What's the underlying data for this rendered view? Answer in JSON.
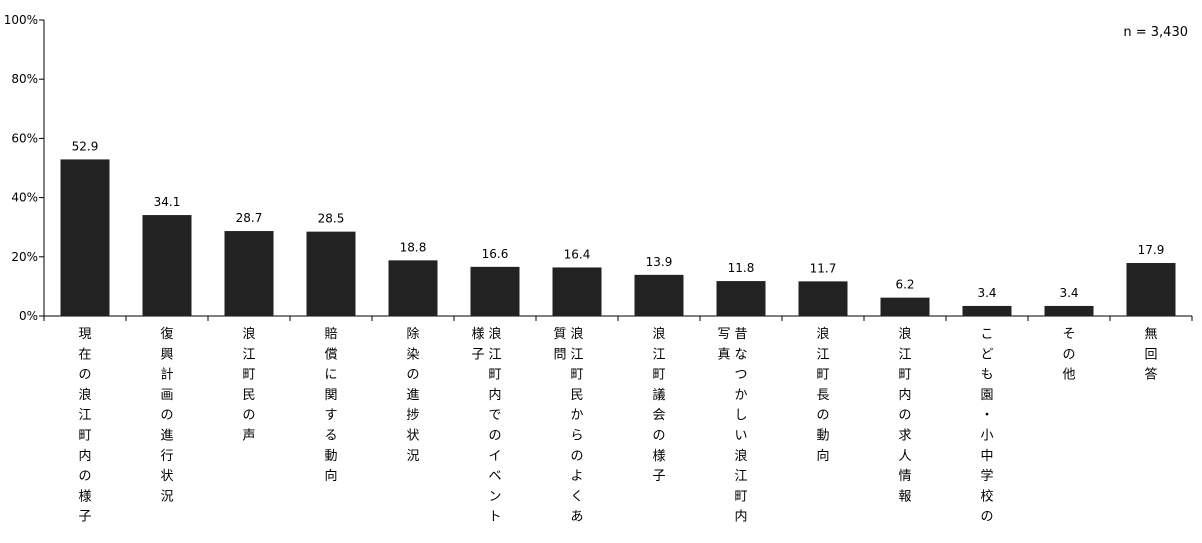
{
  "sample_size": "n = 3,430",
  "colors": {
    "bar": "#222222",
    "axis": "#000000"
  },
  "chart_data": {
    "type": "bar",
    "categories": [
      "現在の浪江町内の様子",
      "復興計画の進行状況",
      "浪江町民の声",
      "賠償に関する動向",
      "除染の進捗状況",
      "浪江町内でのイベントの様子",
      "浪江町民からのよくある質問",
      "浪江町議会の様子",
      "昔なつかしい浪江町内の写真",
      "浪江町長の動向",
      "浪江町内の求人情報",
      "こども園・小中学校の情",
      "その他",
      "無回答"
    ],
    "category_lines": [
      [
        "現在の浪江町内の様子"
      ],
      [
        "復興計画の進行状況"
      ],
      [
        "浪江町民の声"
      ],
      [
        "賠償に関する動向"
      ],
      [
        "除染の進捗状況"
      ],
      [
        "浪江町内でのイベントの",
        "様子"
      ],
      [
        "浪江町民からのよくある",
        "質問"
      ],
      [
        "浪江町議会の様子"
      ],
      [
        "昔なつかしい浪江町内の",
        "写真"
      ],
      [
        "浪江町長の動向"
      ],
      [
        "浪江町内の求人情報"
      ],
      [
        "こども園・小中学校の情"
      ],
      [
        "その他"
      ],
      [
        "無回答"
      ]
    ],
    "values": [
      52.9,
      34.1,
      28.7,
      28.5,
      18.8,
      16.6,
      16.4,
      13.9,
      11.8,
      11.7,
      6.2,
      3.4,
      3.4,
      17.9
    ],
    "value_labels": [
      "52.9",
      "34.1",
      "28.7",
      "28.5",
      "18.8",
      "16.6",
      "16.4",
      "13.9",
      "11.8",
      "11.7",
      "6.2",
      "3.4",
      "3.4",
      "17.9"
    ],
    "yticks": [
      "0%",
      "20%",
      "40%",
      "60%",
      "80%",
      "100%"
    ],
    "ylim": [
      0,
      100
    ],
    "grid": false,
    "legend": "none"
  }
}
